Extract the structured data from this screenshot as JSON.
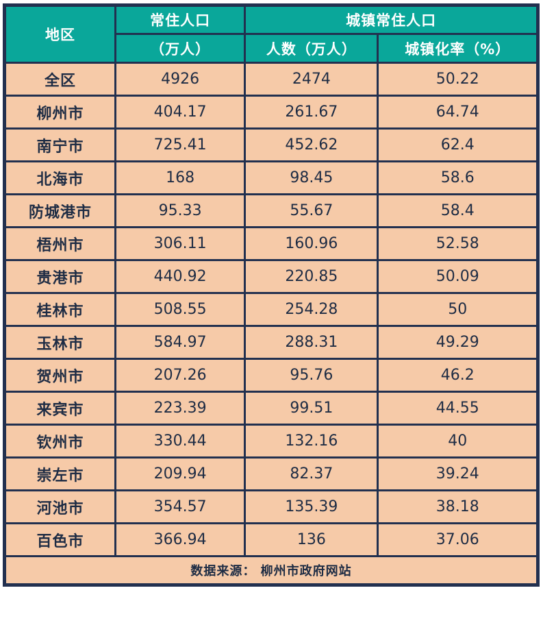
{
  "chart_data": {
    "type": "table",
    "header": {
      "region": "地区",
      "resident_group": "常住人口",
      "resident_unit": "（万人）",
      "urban_group": "城镇常住人口",
      "urban_count": "人数（万人）",
      "urban_rate": "城镇化率（%）"
    },
    "rows": [
      [
        "全区",
        "4926",
        "2474",
        "50.22"
      ],
      [
        "柳州市",
        "404.17",
        "261.67",
        "64.74"
      ],
      [
        "南宁市",
        "725.41",
        "452.62",
        "62.4"
      ],
      [
        "北海市",
        "168",
        "98.45",
        "58.6"
      ],
      [
        "防城港市",
        "95.33",
        "55.67",
        "58.4"
      ],
      [
        "梧州市",
        "306.11",
        "160.96",
        "52.58"
      ],
      [
        "贵港市",
        "440.92",
        "220.85",
        "50.09"
      ],
      [
        "桂林市",
        "508.55",
        "254.28",
        "50"
      ],
      [
        "玉林市",
        "584.97",
        "288.31",
        "49.29"
      ],
      [
        "贺州市",
        "207.26",
        "95.76",
        "46.2"
      ],
      [
        "来宾市",
        "223.39",
        "99.51",
        "44.55"
      ],
      [
        "钦州市",
        "330.44",
        "132.16",
        "40"
      ],
      [
        "崇左市",
        "209.94",
        "82.37",
        "39.24"
      ],
      [
        "河池市",
        "354.57",
        "135.39",
        "38.18"
      ],
      [
        "百色市",
        "366.94",
        "136",
        "37.06"
      ]
    ],
    "source": "数据来源： 柳州市政府网站"
  },
  "colors": {
    "header_bg": "#0aa79a",
    "row_bg": "#f6caa8",
    "border": "#22304f",
    "header_text": "#ffffff",
    "cell_text": "#1e2c44",
    "page_bg": "#ffffff"
  }
}
